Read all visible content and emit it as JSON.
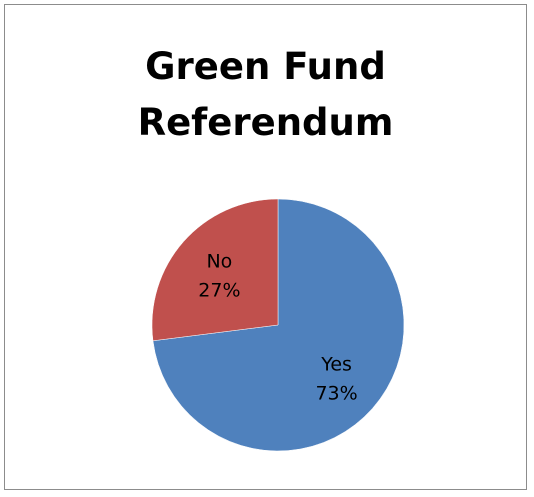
{
  "chart_data": {
    "type": "pie",
    "title": [
      "Green Fund",
      "Referendum"
    ],
    "categories": [
      "Yes",
      "No"
    ],
    "values": [
      73,
      27
    ],
    "labels": [
      {
        "name": "Yes",
        "percent": "73%"
      },
      {
        "name": "No",
        "percent": "27%"
      }
    ],
    "colors": [
      "#4f81bd",
      "#c0504d"
    ],
    "legend": "none",
    "data_labels": "inside"
  }
}
